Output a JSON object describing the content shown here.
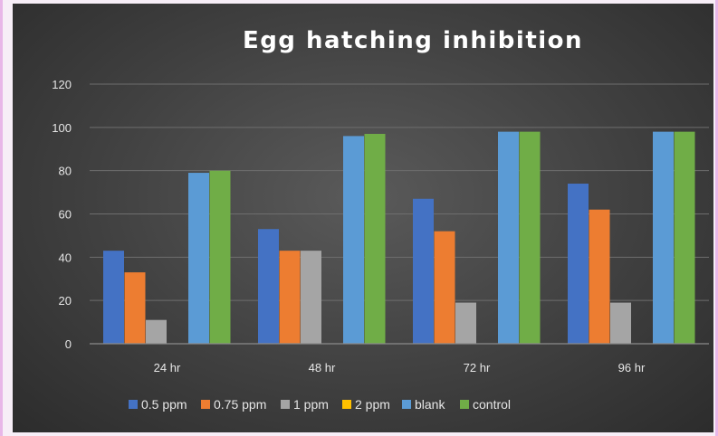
{
  "chart_data": {
    "type": "bar",
    "title": "Egg hatching  inhibition",
    "xlabel": "",
    "ylabel": "",
    "ylim": [
      0,
      120
    ],
    "yticks": [
      0,
      20,
      40,
      60,
      80,
      100,
      120
    ],
    "grid": true,
    "legend_position": "bottom",
    "categories": [
      "24 hr",
      "48 hr",
      "72 hr",
      "96 hr"
    ],
    "series": [
      {
        "name": "0.5 ppm",
        "color": "#4472c4",
        "values": [
          43,
          53,
          67,
          74
        ]
      },
      {
        "name": "0.75 ppm",
        "color": "#ed7d31",
        "values": [
          33,
          43,
          52,
          62
        ]
      },
      {
        "name": "1 ppm",
        "color": "#a5a5a5",
        "values": [
          11,
          43,
          19,
          19
        ]
      },
      {
        "name": "2 ppm",
        "color": "#ffc000",
        "values": [
          0,
          0,
          0,
          0
        ]
      },
      {
        "name": "blank",
        "color": "#5b9bd5",
        "values": [
          79,
          96,
          98,
          98
        ]
      },
      {
        "name": "control",
        "color": "#70ad47",
        "values": [
          80,
          97,
          98,
          98
        ]
      }
    ]
  }
}
